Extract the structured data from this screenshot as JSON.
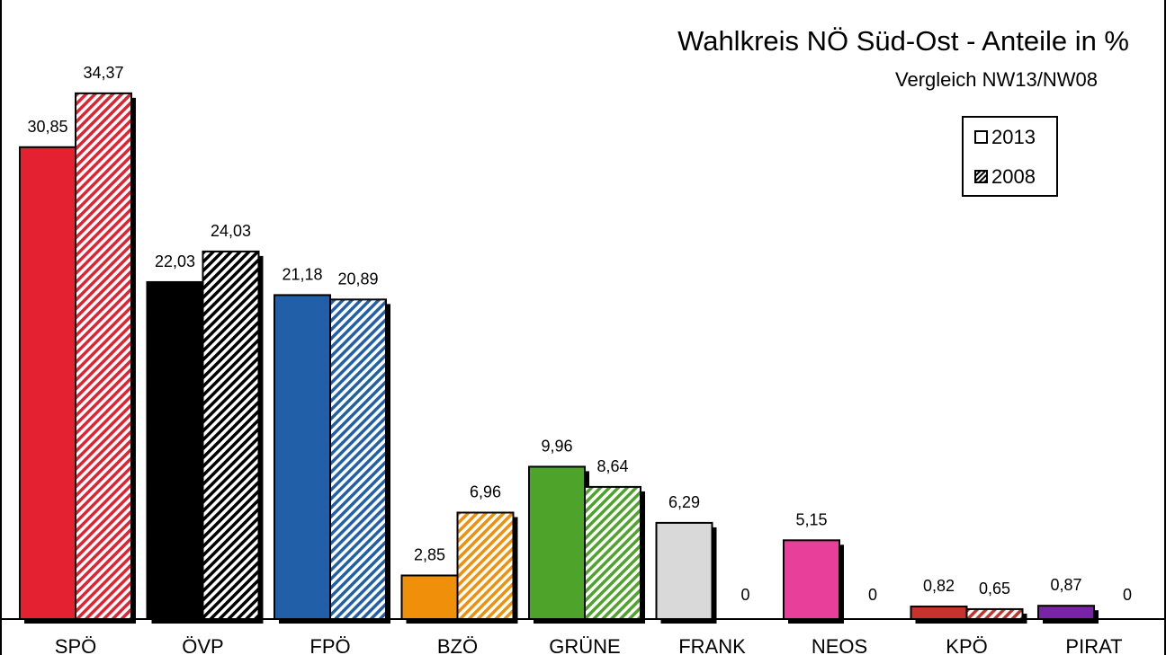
{
  "chart_data": {
    "type": "bar",
    "title": "Wahlkreis NÖ Süd-Ost - Anteile in %",
    "subtitle": "Vergleich  NW13/NW08",
    "categories": [
      "SPÖ",
      "ÖVP",
      "FPÖ",
      "BZÖ",
      "GRÜNE",
      "FRANK",
      "NEOS",
      "KPÖ",
      "PIRAT"
    ],
    "colors": [
      "#e32130",
      "#000000",
      "#2160a8",
      "#f0900a",
      "#4ea32a",
      "#d9d9d9",
      "#e8409a",
      "#c8322c",
      "#7a22a8"
    ],
    "series": [
      {
        "name": "2013",
        "pattern": "solid",
        "values": [
          30.85,
          22.03,
          21.18,
          2.85,
          9.96,
          6.29,
          5.15,
          0.82,
          0.87
        ],
        "labels": [
          "30,85",
          "22,03",
          "21,18",
          "2,85",
          "9,96",
          "6,29",
          "5,15",
          "0,82",
          "0,87"
        ]
      },
      {
        "name": "2008",
        "pattern": "hatched",
        "values": [
          34.37,
          24.03,
          20.89,
          6.96,
          8.64,
          0,
          0,
          0.65,
          0
        ],
        "labels": [
          "34,37",
          "24,03",
          "20,89",
          "6,96",
          "8,64",
          "0",
          "0",
          "0,65",
          "0"
        ]
      }
    ],
    "ylim": [
      0,
      40
    ],
    "grid": false,
    "legend_position": "top-right"
  }
}
